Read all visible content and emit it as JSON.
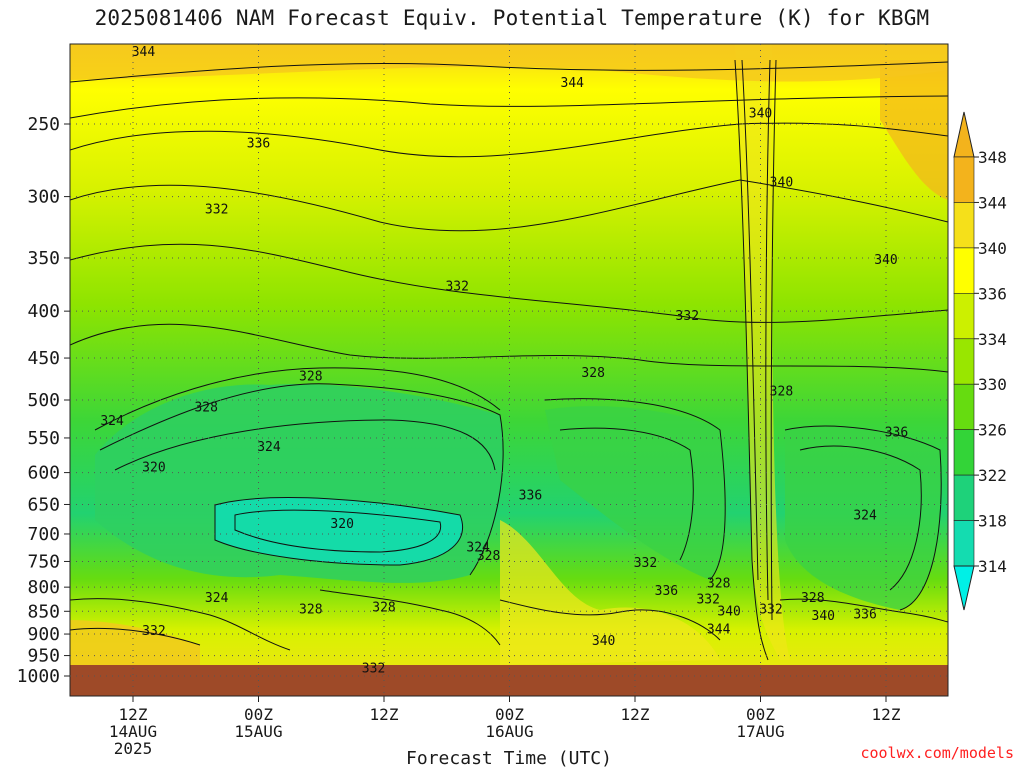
{
  "chart_data": {
    "type": "heatmap",
    "title": "2025081406 NAM Forecast Equiv. Potential Temperature (K) for KBGM",
    "xlabel": "Forecast Time (UTC)",
    "ylabel": "",
    "y_scale": "log-pressure",
    "ylim": [
      1000,
      200
    ],
    "xlim_hours": [
      6,
      76
    ],
    "y_ticks": [
      250,
      300,
      350,
      400,
      450,
      500,
      550,
      600,
      650,
      700,
      750,
      800,
      850,
      900,
      950,
      1000
    ],
    "x_ticks": [
      {
        "hour": 12,
        "lines": [
          "12Z",
          "14AUG",
          "2025"
        ]
      },
      {
        "hour": 24,
        "lines": [
          "00Z",
          "15AUG"
        ]
      },
      {
        "hour": 36,
        "lines": [
          "12Z"
        ]
      },
      {
        "hour": 48,
        "lines": [
          "00Z",
          "16AUG"
        ]
      },
      {
        "hour": 60,
        "lines": [
          "12Z"
        ]
      },
      {
        "hour": 72,
        "lines": [
          "00Z",
          "17AUG"
        ]
      },
      {
        "hour": 84,
        "lines": [
          "12Z"
        ]
      }
    ],
    "colorbar": {
      "labels": [
        348,
        344,
        340,
        336,
        334,
        330,
        326,
        322,
        318,
        314
      ],
      "colors": [
        "#f3b31c",
        "#f5e01a",
        "#ffff00",
        "#ccf000",
        "#99e600",
        "#66dc10",
        "#33d438",
        "#1ed27a",
        "#14dcb0",
        "#00f0e6"
      ]
    },
    "contour_labels": [
      {
        "value": "344",
        "hour": 13,
        "p": 208
      },
      {
        "value": "344",
        "hour": 54,
        "p": 225
      },
      {
        "value": "340",
        "hour": 72,
        "p": 243
      },
      {
        "value": "336",
        "hour": 24,
        "p": 262
      },
      {
        "value": "340",
        "hour": 74,
        "p": 289
      },
      {
        "value": "332",
        "hour": 20,
        "p": 309
      },
      {
        "value": "340",
        "hour": 84,
        "p": 351
      },
      {
        "value": "332",
        "hour": 43,
        "p": 375
      },
      {
        "value": "332",
        "hour": 65,
        "p": 404
      },
      {
        "value": "328",
        "hour": 29,
        "p": 470
      },
      {
        "value": "328",
        "hour": 56,
        "p": 466
      },
      {
        "value": "328",
        "hour": 74,
        "p": 488
      },
      {
        "value": "328",
        "hour": 19,
        "p": 508
      },
      {
        "value": "324",
        "hour": 10,
        "p": 526
      },
      {
        "value": "324",
        "hour": 25,
        "p": 561
      },
      {
        "value": "336",
        "hour": 85,
        "p": 541
      },
      {
        "value": "320",
        "hour": 14,
        "p": 591
      },
      {
        "value": "336",
        "hour": 50,
        "p": 634
      },
      {
        "value": "320",
        "hour": 32,
        "p": 681
      },
      {
        "value": "324",
        "hour": 82,
        "p": 667
      },
      {
        "value": "324",
        "hour": 45,
        "p": 722
      },
      {
        "value": "328",
        "hour": 46,
        "p": 738
      },
      {
        "value": "332",
        "hour": 61,
        "p": 751
      },
      {
        "value": "324",
        "hour": 20,
        "p": 820
      },
      {
        "value": "336",
        "hour": 63,
        "p": 806
      },
      {
        "value": "328",
        "hour": 68,
        "p": 791
      },
      {
        "value": "332",
        "hour": 67,
        "p": 823
      },
      {
        "value": "328",
        "hour": 77,
        "p": 820
      },
      {
        "value": "340",
        "hour": 69,
        "p": 848
      },
      {
        "value": "332",
        "hour": 73,
        "p": 844
      },
      {
        "value": "328",
        "hour": 29,
        "p": 844
      },
      {
        "value": "328",
        "hour": 36,
        "p": 840
      },
      {
        "value": "340",
        "hour": 78,
        "p": 858
      },
      {
        "value": "336",
        "hour": 82,
        "p": 855
      },
      {
        "value": "344",
        "hour": 68,
        "p": 887
      },
      {
        "value": "332",
        "hour": 14,
        "p": 891
      },
      {
        "value": "340",
        "hour": 57,
        "p": 913
      },
      {
        "value": "332",
        "hour": 35,
        "p": 979
      }
    ],
    "credit": "coolwx.com/models"
  }
}
